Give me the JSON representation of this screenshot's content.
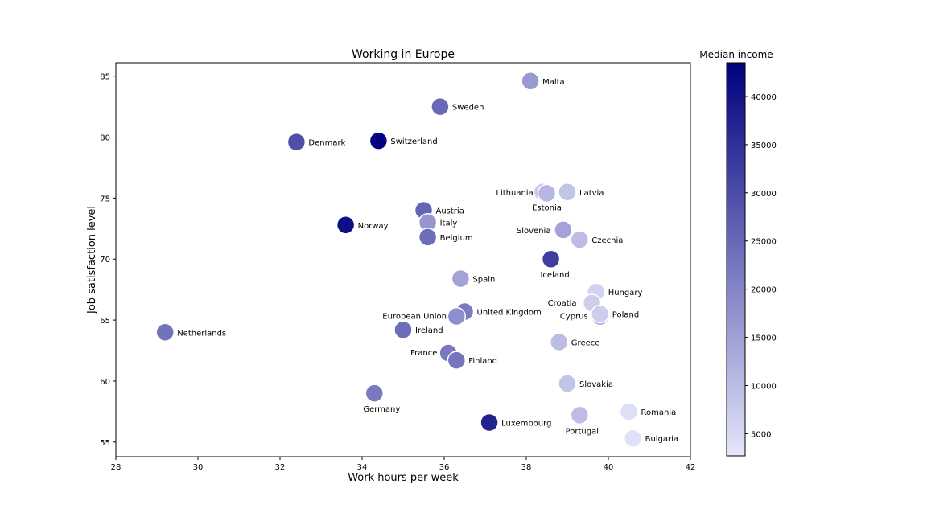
{
  "chart_data": {
    "type": "scatter",
    "title": "Working in Europe",
    "xlabel": "Work hours per week",
    "ylabel": "Job satisfaction level",
    "xlim": [
      28,
      42
    ],
    "ylim": [
      53.8,
      86.1
    ],
    "xticks": [
      28,
      30,
      32,
      34,
      36,
      38,
      40,
      42
    ],
    "yticks": [
      55,
      60,
      65,
      70,
      75,
      80,
      85
    ],
    "grid": false,
    "colorbar": {
      "title": "Median income",
      "range": [
        2700,
        43500
      ],
      "ticks": [
        5000,
        10000,
        15000,
        20000,
        25000,
        30000,
        35000,
        40000
      ],
      "color_low": "#e5e5fb",
      "color_high": "#00007f"
    },
    "points": [
      {
        "name": "Malta",
        "x": 38.1,
        "y": 84.6,
        "income": 16000
      },
      {
        "name": "Sweden",
        "x": 35.9,
        "y": 82.5,
        "income": 25000
      },
      {
        "name": "Denmark",
        "x": 32.4,
        "y": 79.6,
        "income": 29500
      },
      {
        "name": "Switzerland",
        "x": 34.4,
        "y": 79.7,
        "income": 43000
      },
      {
        "name": "Lithuania",
        "x": 38.4,
        "y": 75.5,
        "income": 8000
      },
      {
        "name": "Estonia",
        "x": 38.5,
        "y": 75.4,
        "income": 11000
      },
      {
        "name": "Latvia",
        "x": 39.0,
        "y": 75.5,
        "income": 8500
      },
      {
        "name": "Austria",
        "x": 35.5,
        "y": 74.0,
        "income": 25500
      },
      {
        "name": "Italy",
        "x": 35.6,
        "y": 73.0,
        "income": 17000
      },
      {
        "name": "Norway",
        "x": 33.6,
        "y": 72.8,
        "income": 41000
      },
      {
        "name": "Belgium",
        "x": 35.6,
        "y": 71.8,
        "income": 24000
      },
      {
        "name": "Slovenia",
        "x": 38.9,
        "y": 72.4,
        "income": 14500
      },
      {
        "name": "Czechia",
        "x": 39.3,
        "y": 71.6,
        "income": 10000
      },
      {
        "name": "Iceland",
        "x": 38.6,
        "y": 70.0,
        "income": 32500
      },
      {
        "name": "Spain",
        "x": 36.4,
        "y": 68.4,
        "income": 14500
      },
      {
        "name": "Hungary",
        "x": 39.7,
        "y": 67.3,
        "income": 6000
      },
      {
        "name": "Croatia",
        "x": 39.6,
        "y": 66.4,
        "income": 7000
      },
      {
        "name": "United Kingdom",
        "x": 36.5,
        "y": 65.7,
        "income": 21500
      },
      {
        "name": "European Union",
        "x": 36.3,
        "y": 65.3,
        "income": 18000
      },
      {
        "name": "Cyprus",
        "x": 39.8,
        "y": 65.3,
        "income": 15000
      },
      {
        "name": "Poland",
        "x": 39.8,
        "y": 65.5,
        "income": 7000
      },
      {
        "name": "Netherlands",
        "x": 29.2,
        "y": 64.0,
        "income": 23000
      },
      {
        "name": "Ireland",
        "x": 35.0,
        "y": 64.2,
        "income": 24000
      },
      {
        "name": "Greece",
        "x": 38.8,
        "y": 63.2,
        "income": 10000
      },
      {
        "name": "France",
        "x": 36.1,
        "y": 62.3,
        "income": 22000
      },
      {
        "name": "Finland",
        "x": 36.3,
        "y": 61.7,
        "income": 22500
      },
      {
        "name": "Slovakia",
        "x": 39.0,
        "y": 59.8,
        "income": 8500
      },
      {
        "name": "Germany",
        "x": 34.3,
        "y": 59.0,
        "income": 22000
      },
      {
        "name": "Romania",
        "x": 40.5,
        "y": 57.5,
        "income": 4000
      },
      {
        "name": "Portugal",
        "x": 39.3,
        "y": 57.2,
        "income": 10000
      },
      {
        "name": "Luxembourg",
        "x": 37.1,
        "y": 56.6,
        "income": 37500
      },
      {
        "name": "Bulgaria",
        "x": 40.6,
        "y": 55.3,
        "income": 3500
      }
    ]
  }
}
